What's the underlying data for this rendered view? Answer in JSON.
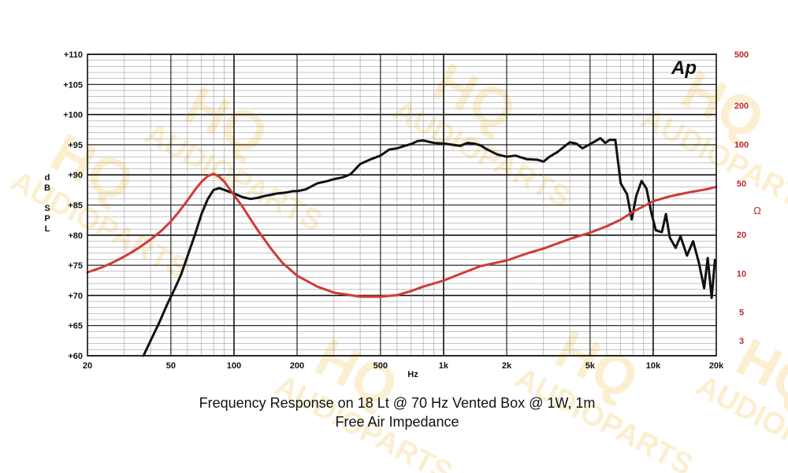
{
  "chart_data": {
    "type": "line",
    "caption_line1": "Frequency Response on 18 Lt @ 70 Hz Vented Box @ 1W, 1m",
    "caption_line2": "Free Air Impedance",
    "ylabel": "dB SPL",
    "y2label": "Ω",
    "xlabel": "Hz",
    "logo": "Ap",
    "watermark": "HQ AUDIOPARTS",
    "x_scale": "log",
    "xlim": [
      20,
      20000
    ],
    "ylim": [
      60,
      110
    ],
    "y2_scale": "log",
    "y2lim": [
      2.3,
      500
    ],
    "grid": true,
    "y_ticks": [
      "+60",
      "+65",
      "+70",
      "+75",
      "+80",
      "+85",
      "+90",
      "+95",
      "+100",
      "+105",
      "+110"
    ],
    "x_ticks": [
      "20",
      "50",
      "100",
      "200",
      "500",
      "1k",
      "2k",
      "5k",
      "10k",
      "20k"
    ],
    "y2_ticks": [
      "3",
      "5",
      "10",
      "20",
      "50",
      "100",
      "200",
      "500"
    ],
    "colors": {
      "spl": "#111111",
      "impedance": "#d03a3a",
      "right_axis": "#c0272d",
      "grid_major": "#111111",
      "grid_minor": "#8a8a8a"
    },
    "series": [
      {
        "key": "spl",
        "axis": "left",
        "x": [
          37,
          40,
          44,
          48,
          52,
          56,
          60,
          65,
          70,
          75,
          80,
          85,
          90,
          100,
          110,
          120,
          130,
          140,
          150,
          160,
          170,
          180,
          190,
          200,
          220,
          250,
          280,
          300,
          330,
          360,
          400,
          450,
          500,
          550,
          600,
          650,
          700,
          750,
          800,
          850,
          900,
          1000,
          1100,
          1200,
          1300,
          1400,
          1500,
          1600,
          1800,
          2000,
          2200,
          2500,
          2800,
          3000,
          3200,
          3500,
          3800,
          4000,
          4300,
          4600,
          5000,
          5300,
          5600,
          5900,
          6200,
          6600,
          7000,
          7500,
          7900,
          8300,
          8800,
          9300,
          9800,
          10300,
          11000,
          11500,
          12000,
          12800,
          13500,
          14500,
          15500,
          16500,
          17500,
          18200,
          19000,
          19700
        ],
        "y": [
          60,
          62.5,
          65.5,
          68.5,
          71,
          73.5,
          76.5,
          80,
          83.5,
          86,
          87.5,
          87.8,
          87.5,
          86.9,
          86.3,
          86,
          86.2,
          86.5,
          86.7,
          86.9,
          87,
          87.1,
          87.3,
          87.3,
          87.6,
          88.6,
          89,
          89.3,
          89.6,
          90.1,
          91.8,
          92.6,
          93.2,
          94.2,
          94.4,
          94.8,
          95.1,
          95.6,
          95.7,
          95.5,
          95.3,
          95.2,
          95,
          94.8,
          95.3,
          95.2,
          94.9,
          94.3,
          93.4,
          93,
          93.2,
          92.6,
          92.5,
          92.2,
          93,
          93.8,
          94.8,
          95.4,
          95.2,
          94.4,
          95.1,
          95.6,
          96.1,
          95.3,
          95.8,
          95.8,
          88.6,
          86.8,
          82.6,
          86.5,
          89,
          87.7,
          83.7,
          80.8,
          80.5,
          83.5,
          79.6,
          77.9,
          79.8,
          76.6,
          79,
          75.5,
          71.2,
          76.2,
          69.6,
          75.9
        ]
      },
      {
        "key": "impedance",
        "axis": "right",
        "x": [
          20,
          23,
          26,
          30,
          35,
          40,
          45,
          50,
          55,
          60,
          65,
          70,
          75,
          80,
          85,
          90,
          100,
          110,
          120,
          130,
          150,
          170,
          200,
          250,
          300,
          350,
          400,
          450,
          500,
          600,
          700,
          800,
          1000,
          1200,
          1500,
          2000,
          2500,
          3000,
          4000,
          5000,
          6000,
          7000,
          8000,
          10000,
          12000,
          15000,
          18000,
          20000
        ],
        "y": [
          10.2,
          11,
          12,
          13.5,
          15.7,
          18.3,
          21.4,
          25.3,
          30.5,
          36.8,
          44.2,
          51.3,
          56.9,
          59.2,
          56.2,
          51.3,
          40.5,
          32.8,
          26.3,
          21.6,
          15.6,
          12.1,
          9.6,
          7.9,
          7.1,
          6.83,
          6.6,
          6.6,
          6.6,
          6.79,
          7.3,
          7.9,
          8.8,
          9.9,
          11.4,
          12.6,
          14.3,
          15.6,
          18.5,
          20.7,
          23.2,
          26.1,
          30,
          36.3,
          39.6,
          42.7,
          45,
          46.9
        ]
      }
    ]
  }
}
